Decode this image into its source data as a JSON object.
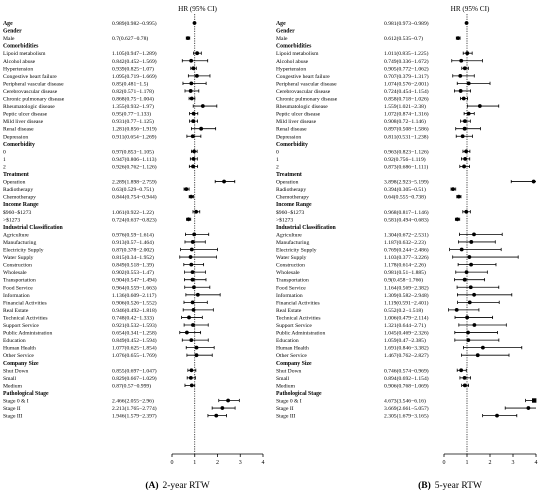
{
  "chart_data": [
    {
      "type": "forest",
      "panel_label": "(A)",
      "caption": "2-year RTW",
      "column_title": "HR (95% CI)",
      "xlim": [
        0,
        4
      ],
      "xticks": [
        "0",
        "1",
        "2",
        "3",
        "4"
      ],
      "reference_line": 1,
      "rows": [
        {
          "kind": "header",
          "label": "Age",
          "hr": 0.989,
          "lo": 0.982,
          "hi": 0.995,
          "text": "0.989(0.982−0.995)"
        },
        {
          "kind": "header",
          "label": "Gender"
        },
        {
          "kind": "item",
          "label": "Male",
          "hr": 0.7,
          "lo": 0.627,
          "hi": 0.78,
          "text": "0.7(0.627−0.78)"
        },
        {
          "kind": "header",
          "label": "Comorbidities"
        },
        {
          "kind": "item",
          "label": "Lipoid metabolism",
          "hr": 1.105,
          "lo": 0.947,
          "hi": 1.289,
          "text": "1.105(0.947−1.289)"
        },
        {
          "kind": "item",
          "label": "Alcohol abuse",
          "hr": 0.842,
          "lo": 0.452,
          "hi": 1.569,
          "text": "0.842(0.452−1.569)"
        },
        {
          "kind": "item",
          "label": "Hypertension",
          "hr": 0.939,
          "lo": 0.825,
          "hi": 1.07,
          "text": "0.939(0.825−1.07)"
        },
        {
          "kind": "item",
          "label": "Congestive heart failure",
          "hr": 1.095,
          "lo": 0.719,
          "hi": 1.669,
          "text": "1.095(0.719−1.669)"
        },
        {
          "kind": "item",
          "label": "Peripheral vascular disease",
          "hr": 0.85,
          "lo": 0.481,
          "hi": 1.5,
          "text": "0.85(0.481−1.5)"
        },
        {
          "kind": "item",
          "label": "Cerebrovascular disease",
          "hr": 0.82,
          "lo": 0.571,
          "hi": 1.178,
          "text": "0.82(0.571−1.178)"
        },
        {
          "kind": "item",
          "label": "Chronic pulmonary disease",
          "hr": 0.868,
          "lo": 0.75,
          "hi": 1.004,
          "text": "0.868(0.75−1.004)"
        },
        {
          "kind": "item",
          "label": "Rheumatologic disease",
          "hr": 1.355,
          "lo": 0.932,
          "hi": 1.97,
          "text": "1.355(0.932−1.97)"
        },
        {
          "kind": "item",
          "label": "Peptic ulcer disease",
          "hr": 0.95,
          "lo": 0.77,
          "hi": 1.133,
          "text": "0.95(0.77−1.133)"
        },
        {
          "kind": "item",
          "label": "Mild liver disease",
          "hr": 0.931,
          "lo": 0.77,
          "hi": 1.125,
          "text": "0.931(0.77−1.125)"
        },
        {
          "kind": "item",
          "label": "Renal disease",
          "hr": 1.281,
          "lo": 0.856,
          "hi": 1.919,
          "text": "1.281(0.856−1.919)"
        },
        {
          "kind": "item",
          "label": "Depression",
          "hr": 0.911,
          "lo": 0.654,
          "hi": 1.269,
          "text": "0.911(0.654−1.269)"
        },
        {
          "kind": "header",
          "label": "Comorbidity"
        },
        {
          "kind": "item",
          "label": "0",
          "hr": 0.97,
          "lo": 0.853,
          "hi": 1.105,
          "text": "0.97(0.853−1.105)"
        },
        {
          "kind": "item",
          "label": "1",
          "hr": 0.947,
          "lo": 0.806,
          "hi": 1.113,
          "text": "0.947(0.806−1.113)"
        },
        {
          "kind": "item",
          "label": "2",
          "hr": 0.926,
          "lo": 0.762,
          "hi": 1.126,
          "text": "0.926(0.762−1.126)"
        },
        {
          "kind": "header",
          "label": "Treatment"
        },
        {
          "kind": "item",
          "label": "Operation",
          "hr": 2.289,
          "lo": 1.898,
          "hi": 2.759,
          "text": "2.289(1.898−2.759)"
        },
        {
          "kind": "item",
          "label": "Radiotherapy",
          "hr": 0.63,
          "lo": 0.529,
          "hi": 0.751,
          "text": "0.63(0.529−0.751)"
        },
        {
          "kind": "item",
          "label": "Chemotherapy",
          "hr": 0.844,
          "lo": 0.754,
          "hi": 0.944,
          "text": "0.844(0.754−0.944)"
        },
        {
          "kind": "header",
          "label": "Income Range"
        },
        {
          "kind": "item",
          "label": "$960−$1273",
          "hr": 1.061,
          "lo": 0.922,
          "hi": 1.22,
          "text": "1.061(0.922−1.22)"
        },
        {
          "kind": "item",
          "label": "&gt;$1273",
          "hr": 0.724,
          "lo": 0.637,
          "hi": 0.823,
          "text": "0.724(0.637−0.823)"
        },
        {
          "kind": "header",
          "label": "Industrial Classification"
        },
        {
          "kind": "item",
          "label": "Agriculture",
          "hr": 0.976,
          "lo": 0.59,
          "hi": 1.614,
          "text": "0.976(0.59−1.614)"
        },
        {
          "kind": "item",
          "label": "Manufacturing",
          "hr": 0.913,
          "lo": 0.57,
          "hi": 1.464,
          "text": "0.913(0.57−1.464)"
        },
        {
          "kind": "item",
          "label": "Electricity Supply",
          "hr": 0.87,
          "lo": 0.378,
          "hi": 2.002,
          "text": "0.87(0.378−2.002)"
        },
        {
          "kind": "item",
          "label": "Water Supply",
          "hr": 0.815,
          "lo": 0.34,
          "hi": 1.952,
          "text": "0.815(0.34−1.952)"
        },
        {
          "kind": "item",
          "label": "Construction",
          "hr": 0.849,
          "lo": 0.518,
          "hi": 1.39,
          "text": "0.849(0.518−1.39)"
        },
        {
          "kind": "item",
          "label": "Wholesale",
          "hr": 0.902,
          "lo": 0.553,
          "hi": 1.47,
          "text": "0.902(0.553−1.47)"
        },
        {
          "kind": "item",
          "label": "Transportation",
          "hr": 0.904,
          "lo": 0.547,
          "hi": 1.494,
          "text": "0.904(0.547−1.494)"
        },
        {
          "kind": "item",
          "label": "Food Service",
          "hr": 0.964,
          "lo": 0.559,
          "hi": 1.663,
          "text": "0.964(0.559−1.663)"
        },
        {
          "kind": "item",
          "label": "Information",
          "hr": 1.136,
          "lo": 0.609,
          "hi": 2.117,
          "text": "1.136(0.609−2.117)"
        },
        {
          "kind": "item",
          "label": "Financial Activities",
          "hr": 0.906,
          "lo": 0.526,
          "hi": 1.552,
          "text": "0.906(0.526−1.552)"
        },
        {
          "kind": "item",
          "label": "Real Estate",
          "hr": 0.946,
          "lo": 0.492,
          "hi": 1.818,
          "text": "0.946(0.492−1.818)"
        },
        {
          "kind": "item",
          "label": "Technical Activities",
          "hr": 0.748,
          "lo": 0.42,
          "hi": 1.333,
          "text": "0.748(0.42−1.333)"
        },
        {
          "kind": "item",
          "label": "Support Service",
          "hr": 0.921,
          "lo": 0.532,
          "hi": 1.593,
          "text": "0.921(0.532−1.593)"
        },
        {
          "kind": "item",
          "label": "Public Administration",
          "hr": 0.654,
          "lo": 0.341,
          "hi": 1.258,
          "text": "0.654(0.341−1.258)"
        },
        {
          "kind": "item",
          "label": "Education",
          "hr": 0.849,
          "lo": 0.452,
          "hi": 1.594,
          "text": "0.849(0.452−1.594)"
        },
        {
          "kind": "item",
          "label": "Human Health",
          "hr": 1.077,
          "lo": 0.625,
          "hi": 1.854,
          "text": "1.077(0.625−1.854)"
        },
        {
          "kind": "item",
          "label": "Other Service",
          "hr": 1.076,
          "lo": 0.655,
          "hi": 1.769,
          "text": "1.076(0.655−1.769)"
        },
        {
          "kind": "header",
          "label": "Company Size"
        },
        {
          "kind": "item",
          "label": "Shut Down",
          "hr": 0.855,
          "lo": 0.697,
          "hi": 1.047,
          "text": "0.855(0.697−1.047)"
        },
        {
          "kind": "item",
          "label": "Small",
          "hr": 0.829,
          "lo": 0.667,
          "hi": 1.029,
          "text": "0.829(0.667−1.029)"
        },
        {
          "kind": "item",
          "label": "Medium",
          "hr": 0.87,
          "lo": 0.57,
          "hi": 0.999,
          "text": "0.87(0.57−0.999)"
        },
        {
          "kind": "header",
          "label": "Pathological Stage"
        },
        {
          "kind": "item",
          "label": "Stage 0 &amp; I",
          "hr": 2.466,
          "lo": 2.055,
          "hi": 2.96,
          "text": "2.466(2.055−2.96)"
        },
        {
          "kind": "item",
          "label": "Stage II",
          "hr": 2.213,
          "lo": 1.765,
          "hi": 2.774,
          "text": "2.213(1.765−2.774)"
        },
        {
          "kind": "item",
          "label": "Stage III",
          "hr": 1.946,
          "lo": 1.579,
          "hi": 2.397,
          "text": "1.946(1.579−2.397)"
        }
      ]
    },
    {
      "type": "forest",
      "panel_label": "(B)",
      "caption": "5-year RTW",
      "column_title": "HR (95% CI)",
      "xlim": [
        0,
        4
      ],
      "xticks": [
        "0",
        "1",
        "2",
        "3",
        "4"
      ],
      "reference_line": 1,
      "rows": [
        {
          "kind": "header",
          "label": "Age",
          "hr": 0.981,
          "lo": 0.973,
          "hi": 0.989,
          "text": "0.981(0.973−0.989)"
        },
        {
          "kind": "header",
          "label": "Gender"
        },
        {
          "kind": "item",
          "label": "Male",
          "hr": 0.612,
          "lo": 0.535,
          "hi": 0.7,
          "text": "0.612(0.535−0.7)"
        },
        {
          "kind": "header",
          "label": "Comorbidities"
        },
        {
          "kind": "item",
          "label": "Lipoid metabolism",
          "hr": 1.011,
          "lo": 0.835,
          "hi": 1.225,
          "text": "1.011(0.835−1.225)"
        },
        {
          "kind": "item",
          "label": "Alcohol abuse",
          "hr": 0.749,
          "lo": 0.336,
          "hi": 1.672,
          "text": "0.749(0.336−1.672)"
        },
        {
          "kind": "item",
          "label": "Hypertension",
          "hr": 0.905,
          "lo": 0.772,
          "hi": 1.062,
          "text": "0.905(0.772−1.062)"
        },
        {
          "kind": "item",
          "label": "Congestive heart failure",
          "hr": 0.707,
          "lo": 0.379,
          "hi": 1.317,
          "text": "0.707(0.379−1.317)"
        },
        {
          "kind": "item",
          "label": "Peripheral vascular disease",
          "hr": 1.074,
          "lo": 0.576,
          "hi": 2.001,
          "text": "1.074(0.576−2.001)"
        },
        {
          "kind": "item",
          "label": "Cerebrovascular disease",
          "hr": 0.724,
          "lo": 0.454,
          "hi": 1.154,
          "text": "0.724(0.454−1.154)"
        },
        {
          "kind": "item",
          "label": "Chronic pulmonary disease",
          "hr": 0.858,
          "lo": 0.718,
          "hi": 1.026,
          "text": "0.858(0.718−1.026)"
        },
        {
          "kind": "item",
          "label": "Rheumatologic disease",
          "hr": 1.559,
          "lo": 1.021,
          "hi": 2.38,
          "text": "1.559(1.021−2.38)"
        },
        {
          "kind": "item",
          "label": "Peptic ulcer disease",
          "hr": 1.072,
          "lo": 0.874,
          "hi": 1.316,
          "text": "1.072(0.874−1.316)"
        },
        {
          "kind": "item",
          "label": "Mild liver disease",
          "hr": 0.908,
          "lo": 0.72,
          "hi": 1.146,
          "text": "0.908(0.72−1.146)"
        },
        {
          "kind": "item",
          "label": "Renal disease",
          "hr": 0.897,
          "lo": 0.508,
          "hi": 1.586,
          "text": "0.897(0.508−1.586)"
        },
        {
          "kind": "item",
          "label": "Depression",
          "hr": 0.811,
          "lo": 0.531,
          "hi": 1.238,
          "text": "0.811(0.531−1.238)"
        },
        {
          "kind": "header",
          "label": "Comorbidity"
        },
        {
          "kind": "item",
          "label": "0",
          "hr": 0.963,
          "lo": 0.823,
          "hi": 1.126,
          "text": "0.963(0.823−1.126)"
        },
        {
          "kind": "item",
          "label": "1",
          "hr": 0.92,
          "lo": 0.756,
          "hi": 1.119,
          "text": "0.92(0.756−1.119)"
        },
        {
          "kind": "item",
          "label": "2",
          "hr": 0.873,
          "lo": 0.686,
          "hi": 1.111,
          "text": "0.873(0.686−1.111)"
        },
        {
          "kind": "header",
          "label": "Treatment"
        },
        {
          "kind": "item",
          "label": "Operation",
          "hr": 3.898,
          "lo": 2.923,
          "hi": 5.199,
          "text": "3.898(2.923−5.199)"
        },
        {
          "kind": "item",
          "label": "Radiotherapy",
          "hr": 0.394,
          "lo": 0.305,
          "hi": 0.51,
          "text": "0.394(0.305−0.51)"
        },
        {
          "kind": "item",
          "label": "Chemotherapy",
          "hr": 0.64,
          "lo": 0.555,
          "hi": 0.738,
          "text": "0.64(0.555−0.738)"
        },
        {
          "kind": "header",
          "label": "Income Range"
        },
        {
          "kind": "item",
          "label": "$960−$1273",
          "hr": 0.968,
          "lo": 0.817,
          "hi": 1.146,
          "text": "0.968(0.817−1.146)"
        },
        {
          "kind": "item",
          "label": "&gt;$1273",
          "hr": 0.581,
          "lo": 0.494,
          "hi": 0.683,
          "text": "0.581(0.494−0.683)"
        },
        {
          "kind": "header",
          "label": "Industrial Classification"
        },
        {
          "kind": "item",
          "label": "Agriculture",
          "hr": 1.304,
          "lo": 0.672,
          "hi": 2.531,
          "text": "1.304(0.672−2.531)"
        },
        {
          "kind": "item",
          "label": "Manufacturing",
          "hr": 1.187,
          "lo": 0.632,
          "hi": 2.23,
          "text": "1.187(0.632−2.23)"
        },
        {
          "kind": "item",
          "label": "Electricity Supply",
          "hr": 0.769,
          "lo": 0.244,
          "hi": 2.486,
          "text": "0.769(0.244−2.486)"
        },
        {
          "kind": "item",
          "label": "Water Supply",
          "hr": 1.103,
          "lo": 0.377,
          "hi": 3.226,
          "text": "1.103(0.377−3.226)"
        },
        {
          "kind": "item",
          "label": "Construction",
          "hr": 1.178,
          "lo": 0.614,
          "hi": 2.26,
          "text": "1.178(0.614−2.26)"
        },
        {
          "kind": "item",
          "label": "Wholesale",
          "hr": 0.981,
          "lo": 0.51,
          "hi": 1.885,
          "text": "0.981(0.51−1.885)"
        },
        {
          "kind": "item",
          "label": "Transportation",
          "hr": 0.9,
          "lo": 0.458,
          "hi": 1.766,
          "text": "0.9(0.458−1.766)"
        },
        {
          "kind": "item",
          "label": "Food Service",
          "hr": 1.164,
          "lo": 0.569,
          "hi": 2.382,
          "text": "1.164(0.569−2.382)"
        },
        {
          "kind": "item",
          "label": "Information",
          "hr": 1.309,
          "lo": 0.582,
          "hi": 2.948,
          "text": "1.309(0.582−2.948)"
        },
        {
          "kind": "item",
          "label": "Financial Activities",
          "hr": 1.119,
          "lo": 0.591,
          "hi": 2.401,
          "text": "1.119(0.591−2.401)"
        },
        {
          "kind": "item",
          "label": "Real Estate",
          "hr": 0.552,
          "lo": 0.2,
          "hi": 1.518,
          "text": "0.552(0.2−1.518)"
        },
        {
          "kind": "item",
          "label": "Technical Activities",
          "hr": 1.006,
          "lo": 0.479,
          "hi": 2.114,
          "text": "1.006(0.479−2.114)"
        },
        {
          "kind": "item",
          "label": "Support Service",
          "hr": 1.321,
          "lo": 0.644,
          "hi": 2.71,
          "text": "1.321(0.644−2.71)"
        },
        {
          "kind": "item",
          "label": "Public Administration",
          "hr": 1.045,
          "lo": 0.469,
          "hi": 2.326,
          "text": "1.045(0.469−2.326)"
        },
        {
          "kind": "item",
          "label": "Education",
          "hr": 1.059,
          "lo": 0.47,
          "hi": 2.385,
          "text": "1.059(0.47−2.385)"
        },
        {
          "kind": "item",
          "label": "Human Health",
          "hr": 1.691,
          "lo": 0.846,
          "hi": 3.382,
          "text": "1.691(0.846−3.382)"
        },
        {
          "kind": "item",
          "label": "Other Service",
          "hr": 1.467,
          "lo": 0.762,
          "hi": 2.827,
          "text": "1.467(0.762−2.827)"
        },
        {
          "kind": "header",
          "label": "Company Size"
        },
        {
          "kind": "item",
          "label": "Shut Down",
          "hr": 0.746,
          "lo": 0.574,
          "hi": 0.969,
          "text": "0.746(0.574−0.969)"
        },
        {
          "kind": "item",
          "label": "Small",
          "hr": 0.894,
          "lo": 0.692,
          "hi": 1.154,
          "text": "0.894(0.692−1.154)"
        },
        {
          "kind": "item",
          "label": "Medium",
          "hr": 0.906,
          "lo": 0.768,
          "hi": 1.069,
          "text": "0.906(0.768−1.069)"
        },
        {
          "kind": "header",
          "label": "Pathological Stage"
        },
        {
          "kind": "item",
          "label": "Stage 0 &amp; I",
          "hr": 4.673,
          "lo": 3.546,
          "hi": 6.16,
          "text": "4.673(3.546−6.16)"
        },
        {
          "kind": "item",
          "label": "Stage II",
          "hr": 3.669,
          "lo": 2.661,
          "hi": 5.057,
          "text": "3.669(2.661−5.057)"
        },
        {
          "kind": "item",
          "label": "Stage III",
          "hr": 2.305,
          "lo": 1.679,
          "hi": 3.165,
          "text": "2.305(1.679−3.165)"
        }
      ]
    }
  ]
}
